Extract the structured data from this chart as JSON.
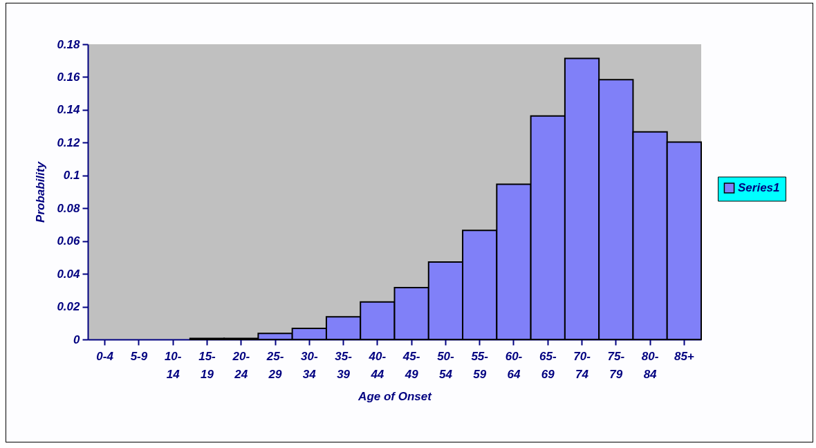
{
  "chart_data": {
    "type": "bar",
    "xlabel": "Age of Onset",
    "ylabel": "Probability",
    "categories": [
      "0-4",
      "5-9",
      "10-14",
      "15-19",
      "20-24",
      "25-29",
      "30-34",
      "35-39",
      "40-44",
      "45-49",
      "50-54",
      "55-59",
      "60-64",
      "65-69",
      "70-74",
      "75-79",
      "80-84",
      "85+"
    ],
    "series": [
      {
        "name": "Series1",
        "color": "#8080f8",
        "values": [
          0,
          0,
          0,
          0.0006,
          0.0006,
          0.0037,
          0.0067,
          0.0138,
          0.0229,
          0.0316,
          0.0472,
          0.0665,
          0.0946,
          0.1363,
          0.1714,
          0.1584,
          0.1266,
          0.1204
        ]
      }
    ],
    "ylim": [
      0,
      0.18
    ],
    "yticks": [
      0,
      0.02,
      0.04,
      0.06,
      0.08,
      0.1,
      0.12,
      0.14,
      0.16,
      0.18
    ],
    "grid": false,
    "legend": "right"
  }
}
